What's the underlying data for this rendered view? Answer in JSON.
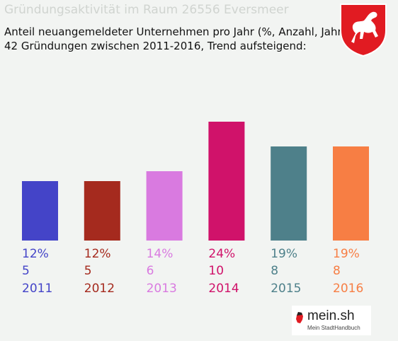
{
  "header": {
    "title": "Gründungsaktivität im Raum 26556 Eversmeer",
    "subtitle_line1": "Anteil neuangemeldeter Unternehmen pro Jahr (%, Anzahl, Jahr)",
    "subtitle_line2": "42 Gründungen zwischen 2011-2016, Trend aufsteigend:"
  },
  "crest": {
    "icon": "lower-saxony-horse-crest-icon",
    "color": "#e11b22"
  },
  "footer": {
    "brand": "mein.sh",
    "tagline": "Mein StadtHandbuch"
  },
  "chart_data": {
    "type": "bar",
    "categories": [
      "2011",
      "2012",
      "2013",
      "2014",
      "2015",
      "2016"
    ],
    "percent_labels": [
      "12%",
      "12%",
      "14%",
      "24%",
      "19%",
      "19%"
    ],
    "count_labels": [
      "5",
      "5",
      "6",
      "10",
      "8",
      "8"
    ],
    "values": [
      12,
      12,
      14,
      24,
      19,
      19
    ],
    "counts": [
      5,
      5,
      6,
      10,
      8,
      8
    ],
    "colors": [
      "#4444c8",
      "#a52a1e",
      "#d97ae0",
      "#d0126a",
      "#4e808a",
      "#f77e44"
    ],
    "ylim": [
      0,
      24
    ],
    "grid": false
  }
}
